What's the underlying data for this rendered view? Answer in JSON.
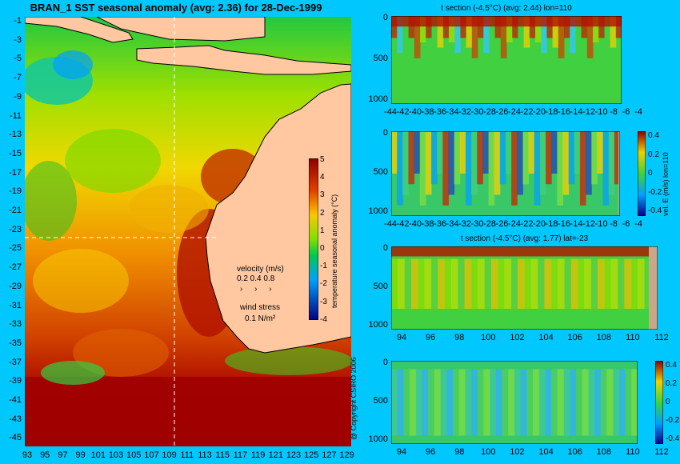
{
  "main_title": "BRAN_1  SST seasonal anomaly  (avg: 2.36)  for 28-Dec-1999",
  "copyright": "@ Copyright CSIRO 2006",
  "map": {
    "y_ticks": [
      "-1",
      "-3",
      "-5",
      "-7",
      "-9",
      "-11",
      "-13",
      "-15",
      "-17",
      "-19",
      "-21",
      "-23",
      "-25",
      "-27",
      "-29",
      "-31",
      "-33",
      "-35",
      "-37",
      "-39",
      "-41",
      "-43",
      "-45"
    ],
    "x_ticks": [
      "93",
      "95",
      "97",
      "99",
      "101",
      "103",
      "105",
      "107",
      "109",
      "111",
      "113",
      "115",
      "117",
      "119",
      "121",
      "123",
      "125",
      "127",
      "129"
    ],
    "colorbar_ticks": [
      "5",
      "4",
      "3",
      "2",
      "1",
      "0",
      "-1",
      "-2",
      "-3",
      "-4"
    ],
    "colorbar_label": "temperature seasonal anomaly (°C)",
    "velocity_label": "velocity (m/s)",
    "velocity_scale": "0.2 0.4 0.8",
    "wind_label": "wind stress",
    "wind_scale": "0.1 N/m²"
  },
  "panels": [
    {
      "id": "t-lon",
      "title": "t section (-4.5°C) (avg: 2.44) lon=110",
      "x_ticks": [
        "-44",
        "-42",
        "-40",
        "-38",
        "-36",
        "-34",
        "-32",
        "-30",
        "-28",
        "-26",
        "-24",
        "-22",
        "-20",
        "-18",
        "-16",
        "-14",
        "-12",
        "-10",
        "-8",
        "-6",
        "-4"
      ],
      "y_ticks": [
        "0",
        "500",
        "1000"
      ]
    },
    {
      "id": "u-lon",
      "title": "",
      "x_ticks": [
        "-44",
        "-42",
        "-40",
        "-38",
        "-36",
        "-34",
        "-32",
        "-30",
        "-28",
        "-26",
        "-24",
        "-22",
        "-20",
        "-18",
        "-16",
        "-14",
        "-12",
        "-10",
        "-8",
        "-6",
        "-4"
      ],
      "y_ticks": [
        "0",
        "500",
        "1000"
      ],
      "cbar_ticks": [
        "0.4",
        "0.2",
        "0",
        "-0.2",
        "-0.4"
      ],
      "cbar_label": "vel. E (m/s) lon=110"
    },
    {
      "id": "t-lat",
      "title": "t section (-4.5°C) (avg: 1.77) lat=-23",
      "x_ticks": [
        "94",
        "96",
        "98",
        "100",
        "102",
        "104",
        "106",
        "108",
        "110",
        "112"
      ],
      "y_ticks": [
        "0",
        "500",
        "1000"
      ]
    },
    {
      "id": "u-lat",
      "title": "",
      "x_ticks": [
        "94",
        "96",
        "98",
        "100",
        "102",
        "104",
        "106",
        "108",
        "110",
        "112"
      ],
      "y_ticks": [
        "0",
        "500",
        "1000"
      ],
      "cbar_ticks": [
        "0.4",
        "0.2",
        "0",
        "-0.2",
        "-0.4"
      ],
      "cbar_label": "vel. E (m/s) lat=-23"
    }
  ],
  "chart_data": [
    {
      "type": "heatmap",
      "title": "BRAN_1  SST seasonal anomaly  (avg: 2.36)  for 28-Dec-1999",
      "xlim": [
        93,
        129
      ],
      "ylim": [
        -45,
        -1
      ],
      "colorbar_range": [
        -4,
        5
      ],
      "colorbar_label": "temperature seasonal anomaly (°C)"
    },
    {
      "type": "heatmap",
      "title": "t section (-4.5°C) (avg: 2.44) lon=110",
      "xlim": [
        -44,
        -4
      ],
      "ylim": [
        1000,
        0
      ]
    },
    {
      "type": "heatmap",
      "title": "",
      "xlim": [
        -44,
        -4
      ],
      "ylim": [
        1000,
        0
      ],
      "colorbar_range": [
        -0.4,
        0.4
      ],
      "colorbar_label": "vel. E (m/s) lon=110"
    },
    {
      "type": "heatmap",
      "title": "t section (-4.5°C) (avg: 1.77) lat=-23",
      "xlim": [
        93,
        113
      ],
      "ylim": [
        1000,
        0
      ]
    },
    {
      "type": "heatmap",
      "title": "",
      "xlim": [
        93,
        113
      ],
      "ylim": [
        1000,
        0
      ],
      "colorbar_range": [
        -0.4,
        0.4
      ],
      "colorbar_label": "vel. E (m/s) lat=-23"
    }
  ]
}
